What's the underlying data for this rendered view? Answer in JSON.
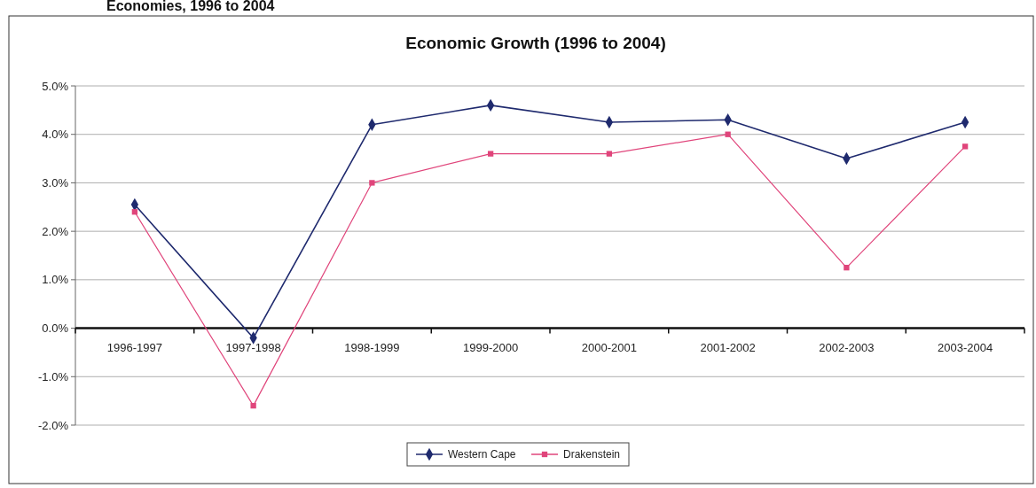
{
  "chart_data": {
    "type": "line",
    "title": "Economic Growth (1996 to 2004)",
    "annotations": [
      "Economies, 1996 to 2004"
    ],
    "categories": [
      "1996-1997",
      "1997-1998",
      "1998-1999",
      "1999-2000",
      "2000-2001",
      "2001-2002",
      "2002-2003",
      "2003-2004"
    ],
    "series": [
      {
        "name": "Western Cape",
        "color": "#1f2a6e",
        "marker": "diamond",
        "values": [
          2.55,
          -0.2,
          4.2,
          4.6,
          4.25,
          4.3,
          3.5,
          4.25
        ]
      },
      {
        "name": "Drakenstein",
        "color": "#e0457b",
        "marker": "square",
        "values": [
          2.4,
          -1.6,
          3.0,
          3.6,
          3.6,
          4.0,
          1.25,
          3.75
        ]
      }
    ],
    "ylim": [
      -2,
      5
    ],
    "yticks": [
      {
        "value": -2,
        "label": "-2.0%"
      },
      {
        "value": -1,
        "label": "-1.0%"
      },
      {
        "value": 0,
        "label": "0.0%"
      },
      {
        "value": 1,
        "label": "1.0%"
      },
      {
        "value": 2,
        "label": "2.0%"
      },
      {
        "value": 3,
        "label": "3.0%"
      },
      {
        "value": 4,
        "label": "4.0%"
      },
      {
        "value": 5,
        "label": "5.0%"
      }
    ],
    "grid": "y",
    "legend": "bottom"
  }
}
